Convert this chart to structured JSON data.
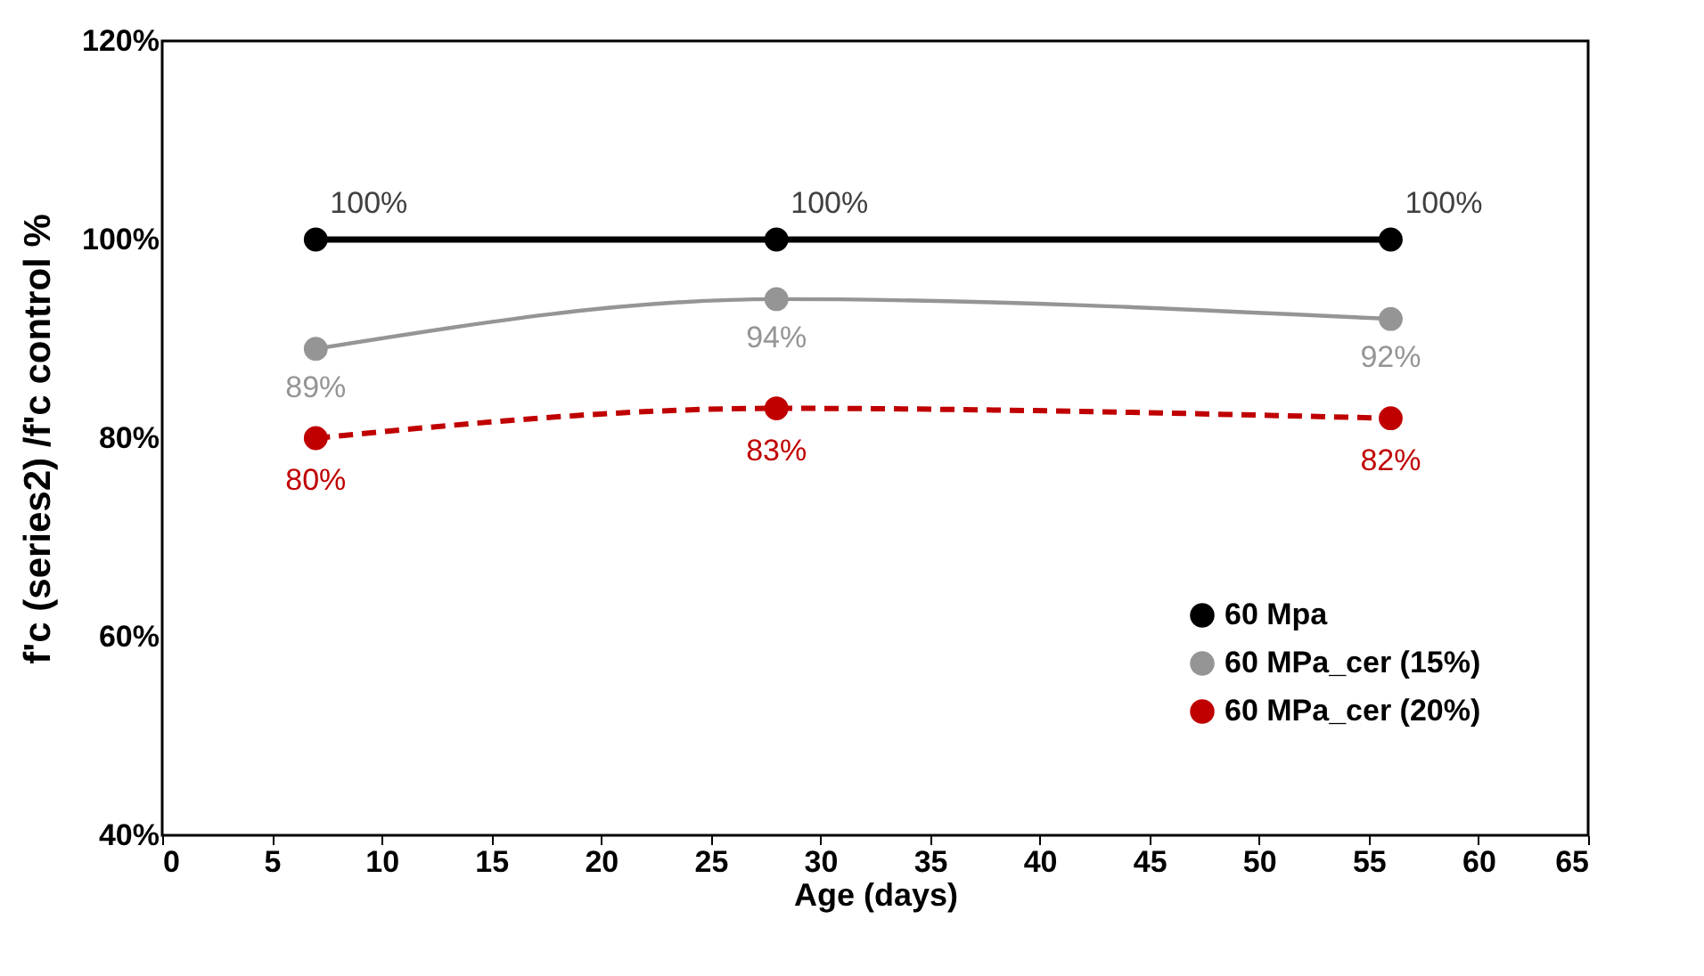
{
  "chart_data": {
    "type": "line",
    "xlabel": "Age (days)",
    "ylabel": "f'c (series2) /f'c control %",
    "x": [
      7,
      28,
      56
    ],
    "series": [
      {
        "name": "60 Mpa",
        "color": "#000000",
        "values": [
          100,
          100,
          100
        ],
        "value_labels": [
          "100%",
          "100%",
          "100%"
        ],
        "line_style": "solid"
      },
      {
        "name": "60 MPa_cer (15%)",
        "color": "#959595",
        "values": [
          89,
          94,
          92
        ],
        "value_labels": [
          "89%",
          "94%",
          "92%"
        ],
        "line_style": "solid"
      },
      {
        "name": "60 MPa_cer (20%)",
        "color": "#c00000",
        "values": [
          80,
          83,
          82
        ],
        "value_labels": [
          "80%",
          "83%",
          "82%"
        ],
        "line_style": "dashed"
      }
    ],
    "xlim": [
      0,
      65
    ],
    "xticks": [
      0,
      5,
      10,
      15,
      20,
      25,
      30,
      35,
      40,
      45,
      50,
      55,
      60,
      65
    ],
    "ylim": [
      40,
      120
    ],
    "yticks": [
      {
        "value": 40,
        "label": "40%"
      },
      {
        "value": 60,
        "label": "60%"
      },
      {
        "value": 80,
        "label": "80%"
      },
      {
        "value": 100,
        "label": "100%"
      },
      {
        "value": 120,
        "label": "120%"
      }
    ],
    "marker": "circle",
    "grid": false,
    "legend": "bottom right"
  }
}
